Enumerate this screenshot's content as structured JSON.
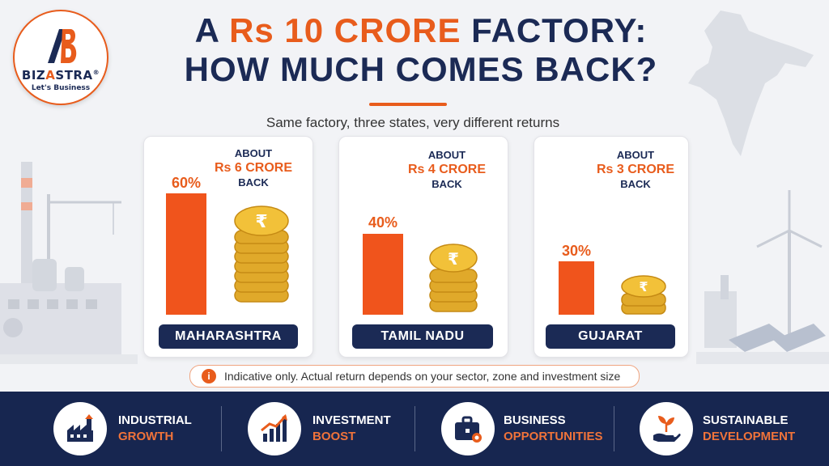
{
  "logo": {
    "name_part1": "BIZ",
    "name_part2": "A",
    "name_part3": "STRA",
    "registered": "®",
    "tagline": "Let's Business"
  },
  "title": {
    "line1_part1": "A ",
    "line1_accent": "Rs 10 CRORE",
    "line1_part2": " FACTORY:",
    "line2_part1": "HOW MUCH ",
    "line2_underlined": "COMES",
    "line2_part2": " BACK?"
  },
  "subtitle": "Same factory, three states, very different returns",
  "states": [
    {
      "name": "MAHARASHTRA",
      "percent": "60%",
      "percent_value": 60,
      "about": "ABOUT",
      "amount": "Rs 6 CRORE",
      "back": "BACK"
    },
    {
      "name": "TAMIL NADU",
      "percent": "40%",
      "percent_value": 40,
      "about": "ABOUT",
      "amount": "Rs 4 CRORE",
      "back": "BACK"
    },
    {
      "name": "GUJARAT",
      "percent": "30%",
      "percent_value": 30,
      "about": "ABOUT",
      "amount": "Rs 3 CRORE",
      "back": "BACK"
    }
  ],
  "coin_symbol": "₹",
  "note": {
    "icon": "info-icon",
    "text": "Indicative only. Actual return depends on your sector, zone and investment size"
  },
  "features": [
    {
      "line1": "INDUSTRIAL",
      "line2": "GROWTH",
      "icon": "factory-icon"
    },
    {
      "line1": "INVESTMENT",
      "line2": "BOOST",
      "icon": "growth-chart-icon"
    },
    {
      "line1": "BUSINESS",
      "line2": "OPPORTUNITIES",
      "icon": "briefcase-icon"
    },
    {
      "line1": "SUSTAINABLE",
      "line2": "DEVELOPMENT",
      "icon": "plant-hand-icon"
    }
  ],
  "colors": {
    "navy": "#1b2a55",
    "orange": "#e85c1c",
    "footer": "#172650"
  }
}
